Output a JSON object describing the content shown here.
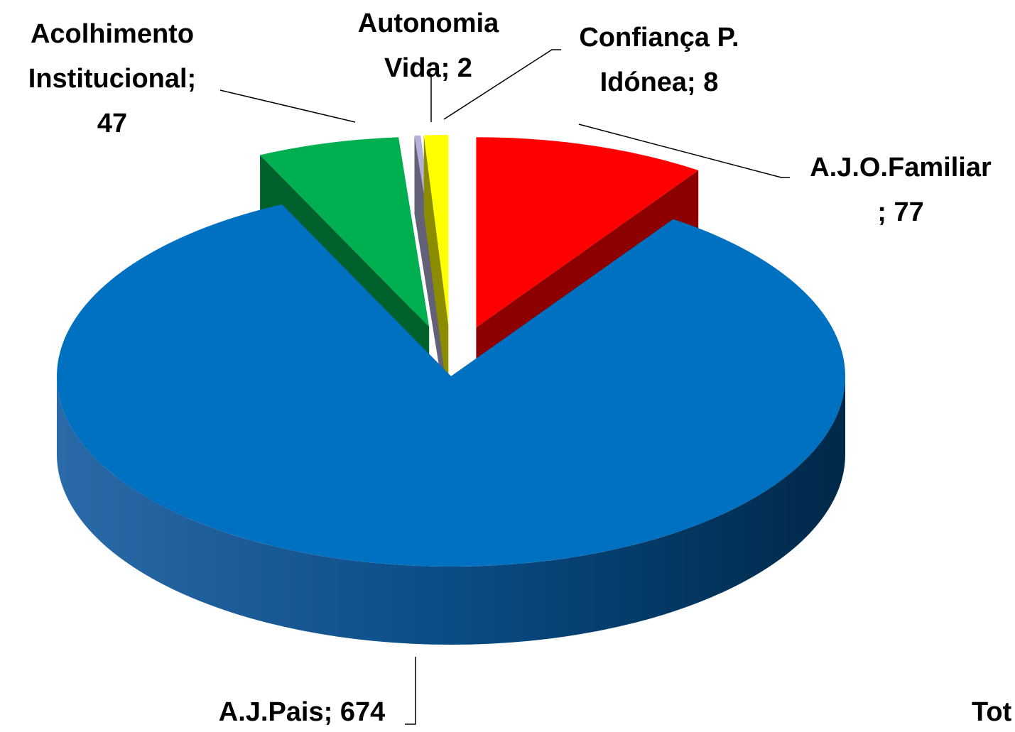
{
  "chart_data": {
    "type": "pie",
    "categories": [
      "A.J.O.Familiar",
      "A.J.Pais",
      "Acolhimento Institucional",
      "Autonomia Vida",
      "Confiança P. Idónea"
    ],
    "values": [
      77,
      674,
      47,
      2,
      8
    ],
    "value_labels": [
      "A.J.O.Familiar ; 77",
      "A.J.Pais; 674",
      "Acolhimento Institucional; 47",
      "Autonomia Vida; 2",
      "Confiança P. Idónea; 8"
    ],
    "colors": [
      "#ff0000",
      "#0070c0",
      "#00b050",
      "#b4b0d8",
      "#ffff00"
    ],
    "note": "Tot"
  }
}
